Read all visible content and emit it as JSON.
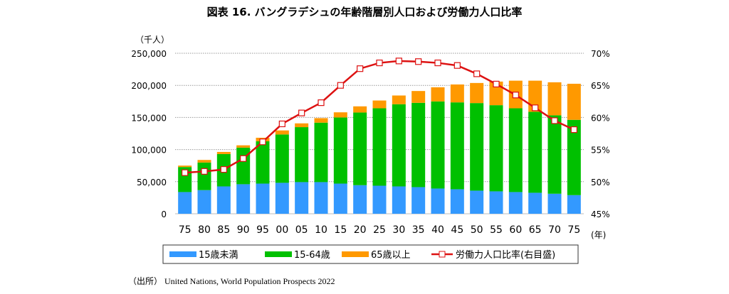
{
  "chart_data": {
    "type": "bar",
    "stacked": true,
    "title": "図表 16. バングラデシュの年齢階層別人口および労働力人口比率",
    "ylabel": "（千人）",
    "xlabel": "(年)",
    "categories": [
      "75",
      "80",
      "85",
      "90",
      "95",
      "00",
      "05",
      "10",
      "15",
      "20",
      "25",
      "30",
      "35",
      "40",
      "45",
      "50",
      "55",
      "60",
      "65",
      "70",
      "75"
    ],
    "ylim": [
      0,
      250000
    ],
    "yticks": [
      "0",
      "50,000",
      "100,000",
      "150,000",
      "200,000",
      "250,000"
    ],
    "y2lim": [
      45,
      70
    ],
    "y2ticks": [
      "45%",
      "50%",
      "55%",
      "60%",
      "65%",
      "70%"
    ],
    "grid": true,
    "legend_position": "bottom",
    "series": [
      {
        "name": "15歳未満",
        "color": "#3399ff",
        "axis": "left",
        "values": [
          33800,
          36800,
          42600,
          46000,
          47000,
          48200,
          49300,
          49300,
          47000,
          44500,
          43700,
          42600,
          41500,
          39300,
          38200,
          36000,
          34900,
          33800,
          32700,
          31200,
          29000
        ]
      },
      {
        "name": "15-64歳",
        "color": "#00c000",
        "axis": "left",
        "values": [
          39000,
          43000,
          50400,
          57000,
          65900,
          75300,
          85600,
          92600,
          103000,
          113200,
          120600,
          128000,
          131300,
          135700,
          135300,
          136400,
          134200,
          130500,
          126100,
          122100,
          117300
        ]
      },
      {
        "name": "65歳以上",
        "color": "#ff9900",
        "axis": "left",
        "values": [
          2200,
          4000,
          3300,
          3600,
          5500,
          6300,
          5900,
          7000,
          8000,
          9600,
          12100,
          13600,
          18400,
          22000,
          27900,
          31300,
          36800,
          43000,
          48500,
          51500,
          56200
        ]
      },
      {
        "name": "労働力人口比率(右目盛)",
        "color": "#dd1111",
        "axis": "right",
        "type": "line",
        "values": [
          51.4,
          51.6,
          51.9,
          53.6,
          56.2,
          59.0,
          60.7,
          62.3,
          65.0,
          67.6,
          68.5,
          68.8,
          68.7,
          68.5,
          68.1,
          66.8,
          65.2,
          63.5,
          61.5,
          59.5,
          58.1
        ]
      }
    ]
  },
  "source": "（出所） United Nations, World Population Prospects 2022"
}
